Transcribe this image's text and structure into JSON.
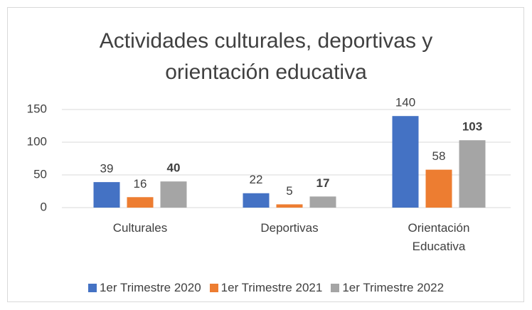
{
  "chart_data": {
    "type": "bar",
    "title": "Actividades culturales, deportivas y orientación educativa",
    "categories": [
      "Culturales",
      "Deportivas",
      "Orientación Educativa"
    ],
    "series": [
      {
        "name": "1er Trimestre 2020",
        "color": "#4472c4",
        "values": [
          39,
          22,
          140
        ]
      },
      {
        "name": "1er Trimestre 2021",
        "color": "#ed7d31",
        "values": [
          16,
          5,
          58
        ]
      },
      {
        "name": "1er Trimestre 2022",
        "color": "#a5a5a5",
        "values": [
          40,
          17,
          103
        ],
        "bold_labels": true
      }
    ],
    "ylim": [
      0,
      150
    ],
    "yticks": [
      0,
      50,
      100,
      150
    ],
    "grid": true,
    "legend": "bottom"
  }
}
